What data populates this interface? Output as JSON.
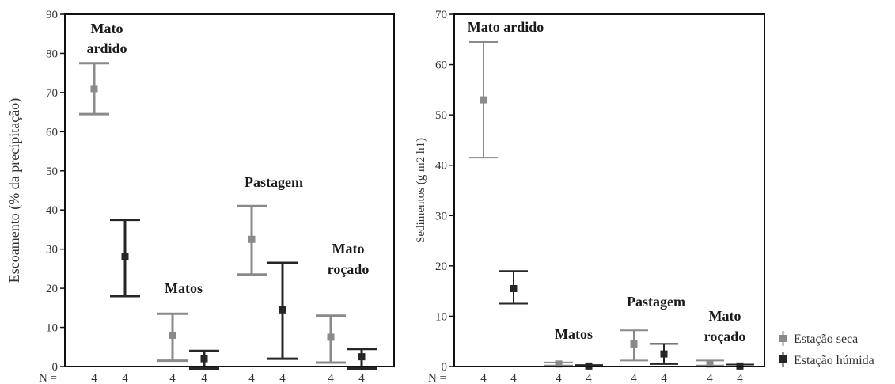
{
  "chart_data": [
    {
      "type": "errorbar",
      "ylabel": "Escoamento (% da precipitação)",
      "ylim": [
        0,
        90
      ],
      "yticks": [
        "0",
        "10",
        "20",
        "30",
        "40",
        "50",
        "60",
        "70",
        "80",
        "90"
      ],
      "n_label": "N =",
      "n_values": [
        "4",
        "4",
        "4",
        "4",
        "4",
        "4",
        "4",
        "4"
      ],
      "groups": [
        {
          "label_lines": [
            "Mato",
            "ardido"
          ]
        },
        {
          "label_lines": [
            "Matos"
          ]
        },
        {
          "label_lines": [
            "Pastagem"
          ]
        },
        {
          "label_lines": [
            "Mato",
            "roçado"
          ]
        }
      ],
      "series": [
        {
          "name": "Estação seca",
          "color": "#8a8a8a",
          "mean": [
            71,
            8,
            32.5,
            7.5
          ],
          "low": [
            64.5,
            1.5,
            23.5,
            1
          ],
          "high": [
            77.5,
            13.5,
            41,
            13
          ]
        },
        {
          "name": "Estação húmida",
          "color": "#262626",
          "mean": [
            28,
            2,
            14.5,
            2.5
          ],
          "low": [
            18,
            -0.5,
            2,
            -0.5
          ],
          "high": [
            37.5,
            4,
            26.5,
            4.5
          ]
        }
      ]
    },
    {
      "type": "errorbar",
      "ylabel": "Sedimentos (g m2 h1)",
      "ylim": [
        0,
        70
      ],
      "yticks": [
        "0",
        "10",
        "20",
        "30",
        "40",
        "50",
        "60",
        "70"
      ],
      "n_label": "N =",
      "n_values": [
        "4",
        "4",
        "4",
        "4",
        "4",
        "4",
        "4",
        "4"
      ],
      "groups": [
        {
          "label_lines": [
            "Mato ardido"
          ]
        },
        {
          "label_lines": [
            "Matos"
          ]
        },
        {
          "label_lines": [
            "Pastagem"
          ]
        },
        {
          "label_lines": [
            "Mato",
            "roçado"
          ]
        }
      ],
      "series": [
        {
          "name": "Estação seca",
          "color": "#8a8a8a",
          "mean": [
            53,
            0.5,
            4.5,
            0.5
          ],
          "low": [
            41.5,
            0.2,
            1.2,
            0.2
          ],
          "high": [
            64.5,
            0.8,
            7.2,
            1.2
          ]
        },
        {
          "name": "Estação húmida",
          "color": "#262626",
          "mean": [
            15.5,
            0.1,
            2.5,
            0.1
          ],
          "low": [
            12.5,
            0,
            0.5,
            0
          ],
          "high": [
            19,
            0.3,
            4.5,
            0.4
          ]
        }
      ]
    }
  ],
  "legend": {
    "items": [
      {
        "label": "Estação seca",
        "color": "#8a8a8a"
      },
      {
        "label": "Estação húmida",
        "color": "#262626"
      }
    ]
  }
}
